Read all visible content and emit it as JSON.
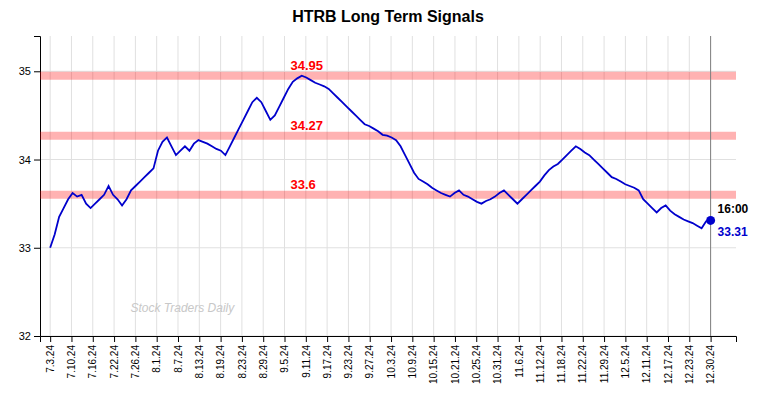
{
  "chart_data": {
    "type": "line",
    "title": "HTRB Long Term Signals",
    "color": "#0000cc",
    "grid": true,
    "xlim": [
      -2,
      135
    ],
    "ylim": [
      32,
      35.4
    ],
    "yticks": [
      32,
      33,
      34,
      35
    ],
    "xticks": [
      {
        "value": 0,
        "label": "7.3.24"
      },
      {
        "value": 4.1935,
        "label": "7.10.24"
      },
      {
        "value": 8.3871,
        "label": "7.16.24"
      },
      {
        "value": 12.5806,
        "label": "7.22.24"
      },
      {
        "value": 16.7742,
        "label": "7.26.24"
      },
      {
        "value": 20.9677,
        "label": "8.1.24"
      },
      {
        "value": 25.1613,
        "label": "8.7.24"
      },
      {
        "value": 29.3548,
        "label": "8.13.24"
      },
      {
        "value": 33.5484,
        "label": "8.19.24"
      },
      {
        "value": 37.7419,
        "label": "8.23.24"
      },
      {
        "value": 41.9355,
        "label": "8.29.24"
      },
      {
        "value": 46.129,
        "label": "9.5.24"
      },
      {
        "value": 50.3226,
        "label": "9.11.24"
      },
      {
        "value": 54.5161,
        "label": "9.17.24"
      },
      {
        "value": 58.7097,
        "label": "9.23.24"
      },
      {
        "value": 62.9032,
        "label": "9.27.24"
      },
      {
        "value": 67.0968,
        "label": "10.3.24"
      },
      {
        "value": 71.2903,
        "label": "10.9.24"
      },
      {
        "value": 75.4839,
        "label": "10.15.24"
      },
      {
        "value": 79.6774,
        "label": "10.21.24"
      },
      {
        "value": 83.871,
        "label": "10.25.24"
      },
      {
        "value": 88.0645,
        "label": "10.31.24"
      },
      {
        "value": 92.2581,
        "label": "11.6.24"
      },
      {
        "value": 96.4516,
        "label": "11.12.24"
      },
      {
        "value": 100.6452,
        "label": "11.18.24"
      },
      {
        "value": 104.8387,
        "label": "11.22.24"
      },
      {
        "value": 109.0323,
        "label": "11.29.24"
      },
      {
        "value": 113.2258,
        "label": "12.5.24"
      },
      {
        "value": 117.4194,
        "label": "12.11.24"
      },
      {
        "value": 121.6129,
        "label": "12.17.24"
      },
      {
        "value": 125.8065,
        "label": "12.23.24"
      },
      {
        "value": 130,
        "label": "12.30.24"
      }
    ],
    "x": [
      0,
      0.8844,
      1.7687,
      2.6531,
      3.5374,
      4.4218,
      5.3061,
      6.1905,
      7.0748,
      7.9592,
      8.8435,
      9.7279,
      10.6122,
      11.4966,
      12.381,
      13.2653,
      14.1497,
      15.034,
      15.9184,
      16.8027,
      17.6871,
      18.5714,
      19.4558,
      20.3401,
      21.2245,
      22.1088,
      22.9932,
      23.8776,
      24.7619,
      25.6463,
      26.5306,
      27.415,
      28.2993,
      29.1837,
      30.068,
      30.9524,
      31.8367,
      32.7211,
      33.6054,
      34.4898,
      35.3741,
      36.2585,
      37.1429,
      38.0272,
      38.9116,
      39.7959,
      40.6803,
      41.5646,
      42.449,
      43.3333,
      44.2177,
      45.102,
      45.9864,
      46.8707,
      47.7551,
      48.6395,
      49.5238,
      50.4082,
      51.2925,
      52.1769,
      53.0612,
      53.9456,
      54.8299,
      55.7143,
      56.5986,
      57.483,
      58.3673,
      59.2517,
      60.1361,
      61.0204,
      61.9048,
      62.7891,
      63.6735,
      64.5578,
      65.4422,
      66.3265,
      67.2109,
      68.0952,
      68.9796,
      69.8639,
      70.7483,
      71.6327,
      72.517,
      73.4014,
      74.2857,
      75.1701,
      76.0544,
      76.9388,
      77.8231,
      78.7075,
      79.5918,
      80.4762,
      81.3605,
      82.2449,
      83.1293,
      84.0136,
      84.898,
      85.7823,
      86.6667,
      87.551,
      88.4354,
      89.3197,
      90.2041,
      91.0884,
      91.9728,
      92.8571,
      93.7415,
      94.6259,
      95.5102,
      96.3946,
      97.2789,
      98.1633,
      99.0476,
      99.932,
      100.8163,
      101.7007,
      102.585,
      103.4694,
      104.3537,
      105.2381,
      106.1224,
      107.0068,
      107.8912,
      108.7755,
      109.6599,
      110.5442,
      111.4286,
      112.3129,
      113.1973,
      114.0816,
      114.966,
      115.8503,
      116.7347,
      117.619,
      118.5034,
      119.3878,
      120.2721,
      121.1565,
      122.0408,
      122.9252,
      123.8095,
      124.6939,
      125.5782,
      126.4626,
      127.3469,
      128.2313,
      129.1156,
      130
    ],
    "values": [
      33.0,
      33.15,
      33.35,
      33.45,
      33.55,
      33.62,
      33.58,
      33.6,
      33.5,
      33.45,
      33.5,
      33.55,
      33.6,
      33.7,
      33.6,
      33.55,
      33.48,
      33.55,
      33.65,
      33.7,
      33.75,
      33.8,
      33.85,
      33.9,
      34.1,
      34.2,
      34.25,
      34.15,
      34.05,
      34.1,
      34.15,
      34.1,
      34.18,
      34.22,
      34.2,
      34.18,
      34.15,
      34.12,
      34.1,
      34.05,
      34.15,
      34.25,
      34.35,
      34.45,
      34.55,
      34.65,
      34.7,
      34.65,
      34.55,
      34.45,
      34.5,
      34.6,
      34.7,
      34.8,
      34.88,
      34.92,
      34.95,
      34.93,
      34.9,
      34.87,
      34.85,
      34.83,
      34.8,
      34.75,
      34.7,
      34.65,
      34.6,
      34.55,
      34.5,
      34.45,
      34.4,
      34.38,
      34.35,
      34.32,
      34.28,
      34.27,
      34.25,
      34.22,
      34.15,
      34.05,
      33.95,
      33.85,
      33.78,
      33.75,
      33.72,
      33.68,
      33.65,
      33.62,
      33.6,
      33.58,
      33.62,
      33.65,
      33.6,
      33.58,
      33.55,
      33.52,
      33.5,
      33.53,
      33.55,
      33.58,
      33.62,
      33.65,
      33.6,
      33.55,
      33.5,
      33.55,
      33.6,
      33.65,
      33.7,
      33.75,
      33.82,
      33.88,
      33.92,
      33.95,
      34.0,
      34.05,
      34.1,
      34.15,
      34.12,
      34.08,
      34.05,
      34.0,
      33.95,
      33.9,
      33.85,
      33.8,
      33.78,
      33.75,
      33.72,
      33.7,
      33.68,
      33.65,
      33.55,
      33.5,
      33.45,
      33.4,
      33.45,
      33.48,
      33.42,
      33.38,
      33.35,
      33.32,
      33.3,
      33.28,
      33.25,
      33.22,
      33.3,
      33.31
    ],
    "annotations": [
      {
        "type": "hline",
        "y": 34.95,
        "text": "34.95",
        "color": "red"
      },
      {
        "type": "hline",
        "y": 34.27,
        "text": "34.27",
        "color": "red"
      },
      {
        "type": "hline",
        "y": 33.6,
        "text": "33.6",
        "color": "red"
      },
      {
        "type": "point",
        "x": 130,
        "y": 33.31,
        "text": "16:00"
      },
      {
        "type": "point",
        "x": 130,
        "y": 33.31,
        "text": "33.31",
        "color": "#0000cc"
      },
      {
        "type": "watermark",
        "text": "Stock Traders Daily"
      }
    ]
  }
}
